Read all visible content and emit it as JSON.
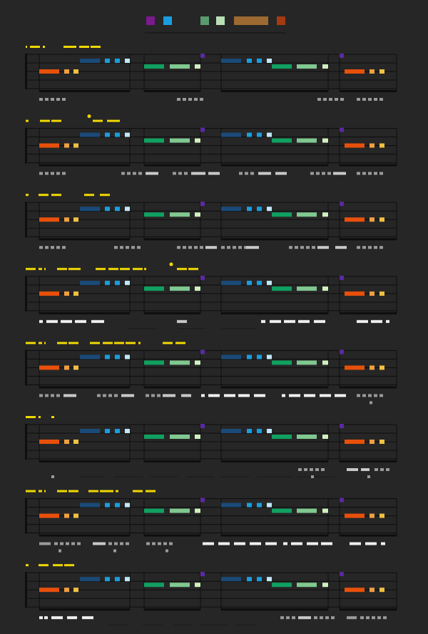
{
  "legend": {
    "swatches": [
      {
        "name": "purple",
        "color": "#7a1a8c"
      },
      {
        "name": "blue",
        "color": "#1a9de0"
      },
      {
        "name": "green",
        "color": "#5a9a6e"
      },
      {
        "name": "pale-green",
        "color": "#b8e0b4"
      },
      {
        "name": "brown",
        "color": "#9c6a30"
      },
      {
        "name": "rust",
        "color": "#a33a10"
      }
    ]
  },
  "colors": {
    "background": "#262626",
    "staff_line": "#0e0e0e",
    "yellow": "#f0d800",
    "orange": "#e8500a",
    "light_orange": "#f0a040",
    "gold": "#f0c040",
    "navy": "#1a4a78",
    "blue": "#1a9de0",
    "light_blue": "#c0e8f8",
    "green": "#10a060",
    "light_green": "#80c890",
    "pale_green": "#d0f0c0",
    "purple": "#5a2aa0",
    "gray": "#9a9a9a",
    "light_gray": "#c8c8c8",
    "white": "#f0f0f0"
  },
  "systems": 8
}
